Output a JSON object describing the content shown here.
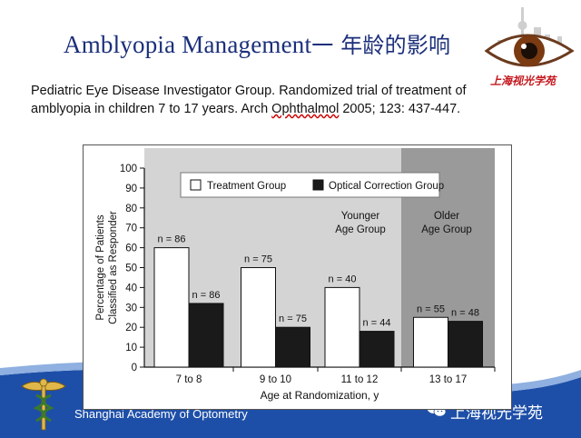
{
  "slide": {
    "title_en": "Amblyopia Management",
    "title_cn": "一 年龄的影响",
    "citation_line1": "Pediatric Eye Disease Investigator Group. Randomized  trial of treatment of",
    "citation_line2_pre": "amblyopia in children 7 to 17 years. Arch ",
    "citation_line2_ul": "Ophthalmol",
    "citation_line2_post": " 2005;  123:  437-447.",
    "logo_caption": "上海视光学苑",
    "footer_text": "Shanghai Academy of Optometry",
    "wechat_text": "上海视光学苑"
  },
  "colors": {
    "title": "#1b2f7a",
    "footer_blue": "#1e4fa8",
    "panel_gray": "#d4d4d4",
    "panel_dark": "#9a9a9a",
    "optical_bar": "#1a1a1a",
    "treatment_bar": "#ffffff"
  },
  "icons": {
    "logo": "eye-logo-icon",
    "wechat": "wechat-icon",
    "emblem": "caduceus-emblem-icon"
  },
  "chart_data": {
    "type": "bar",
    "categories": [
      "7 to 8",
      "9 to 10",
      "11 to 12",
      "13 to 17"
    ],
    "series": [
      {
        "name": "Treatment Group",
        "values": [
          60,
          50,
          40,
          25
        ],
        "n_labels": [
          "n = 86",
          "n = 75",
          "n = 40",
          "n = 55"
        ]
      },
      {
        "name": "Optical Correction Group",
        "values": [
          32,
          20,
          18,
          23
        ],
        "n_labels": [
          "n = 86",
          "n = 75",
          "n = 44",
          "n = 48"
        ]
      }
    ],
    "xlabel": "Age at Randomization, y",
    "ylabel_line1": "Percentage of Patients",
    "ylabel_line2": "Classified as Responder",
    "ylim": [
      0,
      100
    ],
    "yticks": [
      0,
      10,
      20,
      30,
      40,
      50,
      60,
      70,
      80,
      90,
      100
    ],
    "group_labels": [
      {
        "line1": "Younger",
        "line2": "Age Group"
      },
      {
        "line1": "Older",
        "line2": "Age Group"
      }
    ],
    "legend_placement": "top",
    "grid": false
  }
}
